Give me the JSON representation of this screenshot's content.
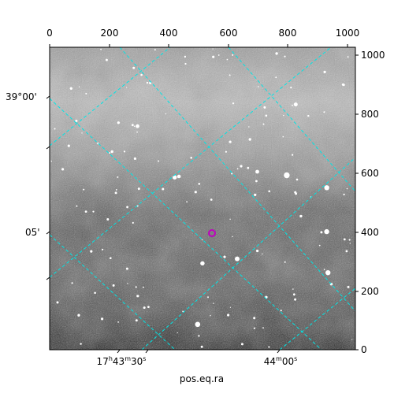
{
  "plot": {
    "x_axis_label": "pos.eq.ra",
    "top_pixel_ticks": [
      "0",
      "200",
      "400",
      "600",
      "800",
      "1000"
    ],
    "right_pixel_ticks": [
      "1000",
      "800",
      "600",
      "400",
      "200",
      "0"
    ],
    "ra_ticks": [
      {
        "h": "17",
        "hu": "h",
        "m": "43",
        "mu": "m",
        "s": "30",
        "su": "s"
      },
      {
        "m": "44",
        "mu": "m",
        "s": "00",
        "su": "s"
      }
    ],
    "dec_ticks": [
      "39°00'",
      "05'"
    ],
    "colors": {
      "grid": "#00e5e5",
      "marker": "#c000c0",
      "frame": "#000000"
    },
    "icons": {
      "marker": "target-circle-icon"
    }
  }
}
